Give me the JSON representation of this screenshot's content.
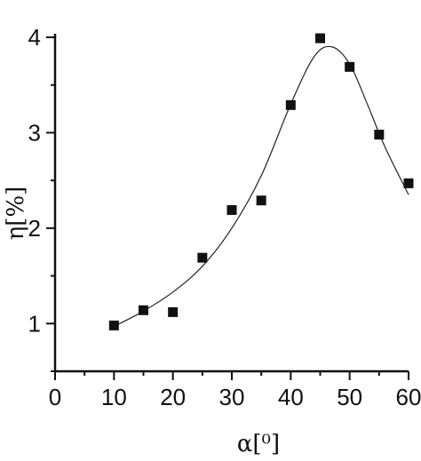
{
  "chart_data": {
    "type": "scatter",
    "xlabel": "α[⁰]",
    "ylabel": "η[%]",
    "xlim": [
      0,
      60
    ],
    "ylim": [
      0.5,
      4
    ],
    "x_ticks": [
      0,
      10,
      20,
      30,
      40,
      50,
      60
    ],
    "x_tick_labels": [
      "0",
      "10",
      "20",
      "30",
      "40",
      "50",
      "60"
    ],
    "y_ticks": [
      1,
      2,
      3,
      4
    ],
    "y_tick_labels": [
      "1",
      "2",
      "3",
      "4"
    ],
    "grid": false,
    "series": [
      {
        "marker": "square",
        "x": [
          10,
          15,
          20,
          25,
          30,
          35,
          40,
          45,
          50,
          55,
          60
        ],
        "y": [
          0.98,
          1.14,
          1.12,
          1.69,
          2.19,
          2.29,
          3.29,
          3.99,
          3.69,
          2.98,
          2.47
        ]
      }
    ],
    "fit_curve": {
      "x": [
        10,
        15,
        20,
        25,
        30,
        35,
        40,
        44,
        47,
        50,
        53,
        56,
        60
      ],
      "y": [
        0.97,
        1.13,
        1.33,
        1.6,
        2.0,
        2.55,
        3.3,
        3.8,
        3.9,
        3.72,
        3.3,
        2.85,
        2.35
      ]
    }
  }
}
